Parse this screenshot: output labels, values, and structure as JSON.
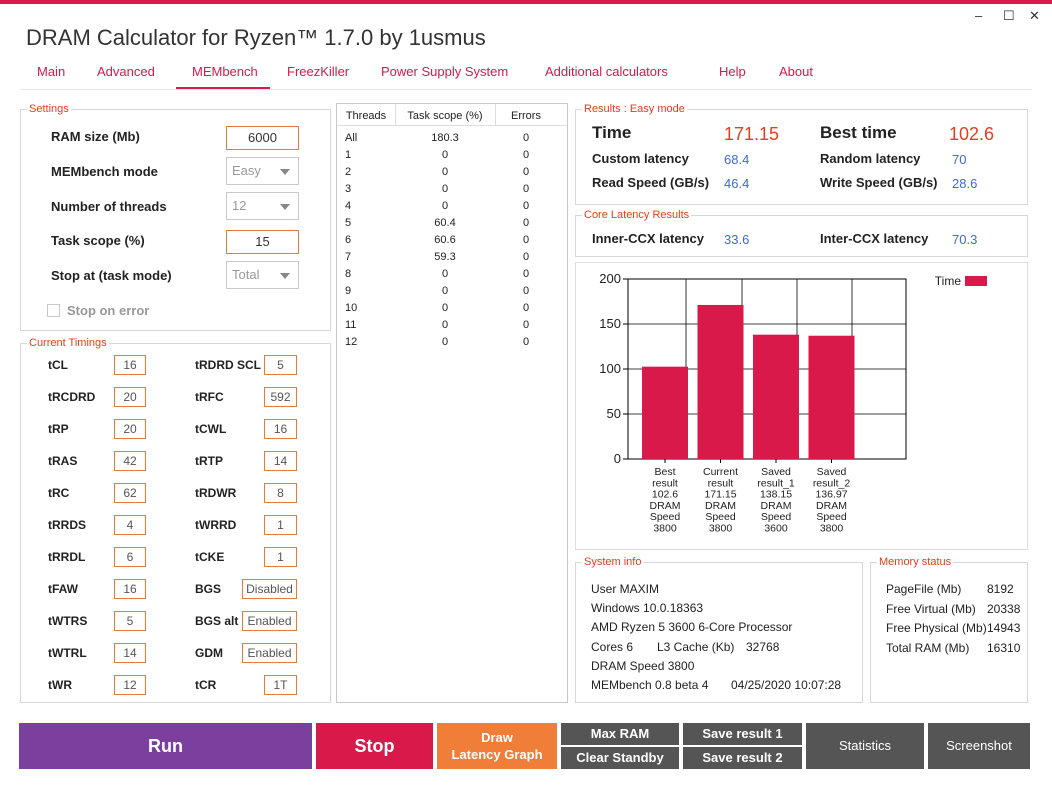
{
  "window": {
    "title": "DRAM Calculator for Ryzen™ 1.7.0 by 1usmus",
    "minimize": "–",
    "maximize": "☐",
    "close": "✕"
  },
  "nav": [
    "Main",
    "Advanced",
    "MEMbench",
    "FreezKiller",
    "Power Supply System",
    "Additional calculators",
    "Help",
    "About"
  ],
  "settings": {
    "legend": "Settings",
    "ram_size_label": "RAM size (Mb)",
    "ram_size_value": "6000",
    "mode_label": "MEMbench mode",
    "mode_value": "Easy",
    "threads_label": "Number of threads",
    "threads_value": "12",
    "scope_label": "Task scope (%)",
    "scope_value": "15",
    "stop_label": "Stop at (task mode)",
    "stop_value": "Total",
    "stop_on_error_label": "Stop on error"
  },
  "timings": {
    "legend": "Current Timings",
    "left": [
      {
        "name": "tCL",
        "value": "16"
      },
      {
        "name": "tRCDRD",
        "value": "20"
      },
      {
        "name": "tRP",
        "value": "20"
      },
      {
        "name": "tRAS",
        "value": "42"
      },
      {
        "name": "tRC",
        "value": "62"
      },
      {
        "name": "tRRDS",
        "value": "4"
      },
      {
        "name": "tRRDL",
        "value": "6"
      },
      {
        "name": "tFAW",
        "value": "16"
      },
      {
        "name": "tWTRS",
        "value": "5"
      },
      {
        "name": "tWTRL",
        "value": "14"
      },
      {
        "name": "tWR",
        "value": "12"
      }
    ],
    "right": [
      {
        "name": "tRDRD SCL",
        "value": "5"
      },
      {
        "name": "tRFC",
        "value": "592"
      },
      {
        "name": "tCWL",
        "value": "16"
      },
      {
        "name": "tRTP",
        "value": "14"
      },
      {
        "name": "tRDWR",
        "value": "8"
      },
      {
        "name": "tWRRD",
        "value": "1"
      },
      {
        "name": "tCKE",
        "value": "1"
      },
      {
        "name": "BGS",
        "value": "Disabled"
      },
      {
        "name": "BGS alt",
        "value": "Enabled"
      },
      {
        "name": "GDM",
        "value": "Enabled"
      },
      {
        "name": "tCR",
        "value": "1T"
      }
    ]
  },
  "threads_table": {
    "headers": [
      "Threads",
      "Task scope (%)",
      "Errors"
    ],
    "rows": [
      [
        "All",
        "180.3",
        "0"
      ],
      [
        "1",
        "0",
        "0"
      ],
      [
        "2",
        "0",
        "0"
      ],
      [
        "3",
        "0",
        "0"
      ],
      [
        "4",
        "0",
        "0"
      ],
      [
        "5",
        "60.4",
        "0"
      ],
      [
        "6",
        "60.6",
        "0"
      ],
      [
        "7",
        "59.3",
        "0"
      ],
      [
        "8",
        "0",
        "0"
      ],
      [
        "9",
        "0",
        "0"
      ],
      [
        "10",
        "0",
        "0"
      ],
      [
        "11",
        "0",
        "0"
      ],
      [
        "12",
        "0",
        "0"
      ]
    ]
  },
  "results": {
    "legend": "Results : Easy mode",
    "time_label": "Time",
    "time_value": "171.15",
    "best_label": "Best time",
    "best_value": "102.6",
    "custom_label": "Custom latency",
    "custom_value": "68.4",
    "random_label": "Random latency",
    "random_value": "70",
    "read_label": "Read Speed (GB/s)",
    "read_value": "46.4",
    "write_label": "Write Speed (GB/s)",
    "write_value": "28.6"
  },
  "core_latency": {
    "legend": "Core Latency Results",
    "inner_label": "Inner-CCX latency",
    "inner_value": "33.6",
    "inter_label": "Inter-CCX latency",
    "inter_value": "70.3"
  },
  "chart_data": {
    "type": "bar",
    "categories": [
      [
        "Best",
        "result",
        "102.6",
        "DRAM",
        "Speed",
        "3800"
      ],
      [
        "Current",
        "result",
        "171.15",
        "DRAM",
        "Speed",
        "3800"
      ],
      [
        "Saved",
        "result_1",
        "138.15",
        "DRAM",
        "Speed",
        "3600"
      ],
      [
        "Saved",
        "result_2",
        "136.97",
        "DRAM",
        "Speed",
        "3800"
      ]
    ],
    "series": [
      {
        "name": "Time",
        "values": [
          102.6,
          171.15,
          138.15,
          136.97
        ]
      }
    ],
    "ylim": [
      0,
      200
    ],
    "yticks": [
      "0",
      "50",
      "100",
      "150",
      "200"
    ],
    "grid": true,
    "legend_position": "top-right",
    "color": "#d8194a"
  },
  "sysinfo": {
    "legend": "System info",
    "user": "User MAXIM",
    "os": "Windows 10.0.18363",
    "cpu": "AMD Ryzen 5 3600 6-Core Processor",
    "cores": "Cores 6",
    "l3": "L3 Cache (Kb)",
    "l3_value": "32768",
    "dram": "DRAM Speed 3800",
    "membench": "MEMbench 0.8 beta 4",
    "date": "04/25/2020 10:07:28"
  },
  "memstatus": {
    "legend": "Memory status",
    "rows": [
      {
        "label": "PageFile (Mb)",
        "value": "8192"
      },
      {
        "label": "Free Virtual (Mb)",
        "value": "20338"
      },
      {
        "label": "Free Physical (Mb)",
        "value": "14943"
      },
      {
        "label": "Total RAM (Mb)",
        "value": "16310"
      }
    ]
  },
  "buttons": {
    "run": "Run",
    "stop": "Stop",
    "draw_line1": "Draw",
    "draw_line2": "Latency Graph",
    "max_ram": "Max RAM",
    "clear_standby": "Clear Standby",
    "save1": "Save result 1",
    "save2": "Save result 2",
    "statistics": "Statistics",
    "screenshot": "Screenshot"
  },
  "colors": {
    "accent": "#d8194a",
    "run": "#7b3f9e",
    "stop": "#d8194a",
    "draw": "#f07d38",
    "dark_button": "#555555",
    "value_blue": "#3c6cc8",
    "value_orange": "#e0401f"
  }
}
